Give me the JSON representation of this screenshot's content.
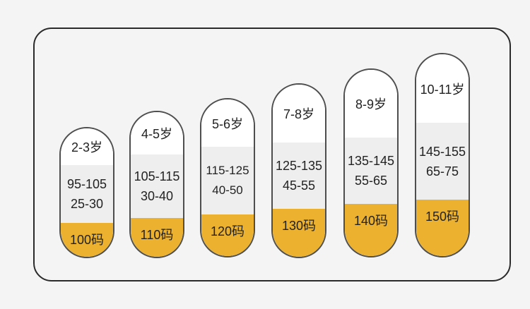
{
  "sizes": [
    {
      "age": "2-3岁",
      "height": "95-105",
      "weight": "25-30",
      "code": "100码"
    },
    {
      "age": "4-5岁",
      "height": "105-115",
      "weight": "30-40",
      "code": "110码"
    },
    {
      "age": "5-6岁",
      "height": "115-125",
      "weight": "40-50",
      "code": "120码"
    },
    {
      "age": "7-8岁",
      "height": "125-135",
      "weight": "45-55",
      "code": "130码"
    },
    {
      "age": "8-9岁",
      "height": "135-145",
      "weight": "55-65",
      "code": "140码"
    },
    {
      "age": "10-11岁",
      "height": "145-155",
      "weight": "65-75",
      "code": "150码"
    }
  ],
  "colors": {
    "accent": "#ecb22f",
    "border": "#4e4e4e",
    "size_band": "#eeeeee"
  }
}
